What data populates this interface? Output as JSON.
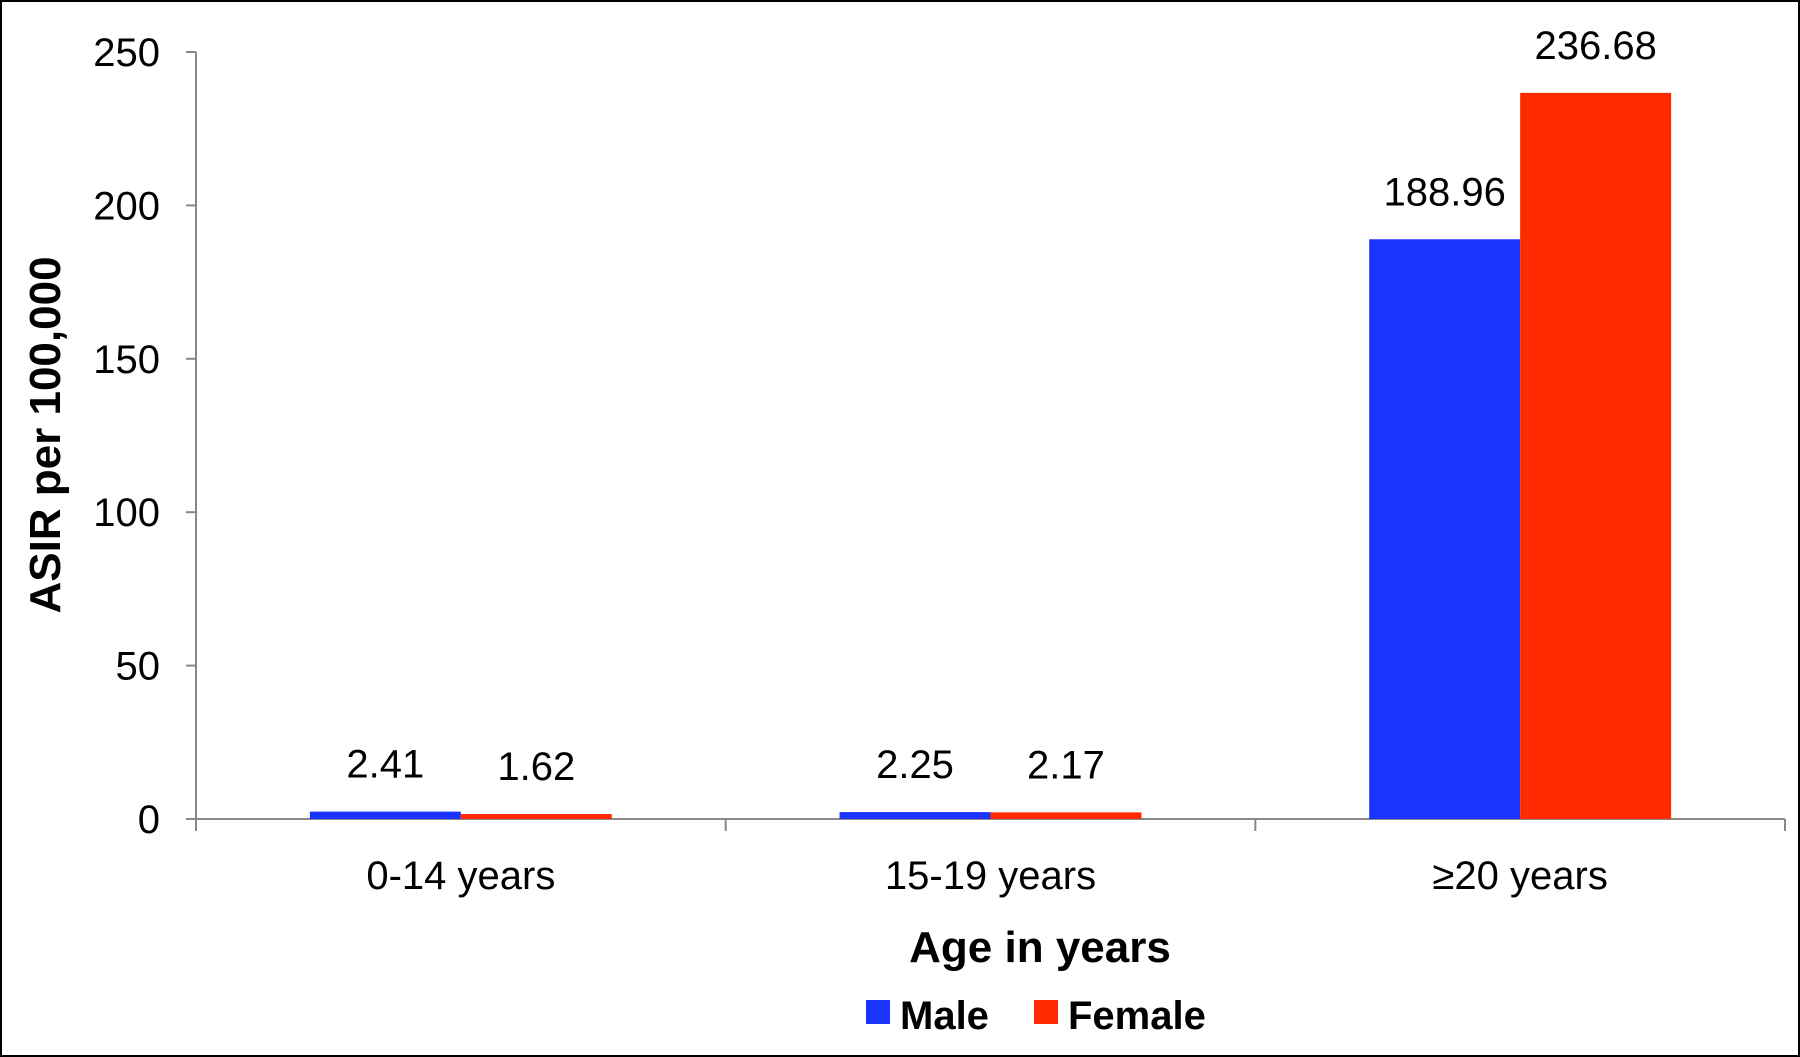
{
  "chart_data": {
    "type": "bar",
    "categories": [
      "0-14 years",
      "15-19 years",
      "≥20 years"
    ],
    "series": [
      {
        "name": "Male",
        "color": "#1a33ff",
        "values": [
          2.41,
          2.25,
          188.96
        ]
      },
      {
        "name": "Female",
        "color": "#ff2a00",
        "values": [
          1.62,
          2.17,
          236.68
        ]
      }
    ],
    "data_labels": [
      [
        "2.41",
        "2.25",
        "188.96"
      ],
      [
        "1.62",
        "2.17",
        "236.68"
      ]
    ],
    "xlabel": "Age in years",
    "ylabel": "ASIR per 100,000",
    "ylim": [
      0,
      250
    ],
    "yticks": [
      0,
      50,
      100,
      150,
      200,
      250
    ],
    "grid": false,
    "legend": "bottom"
  }
}
